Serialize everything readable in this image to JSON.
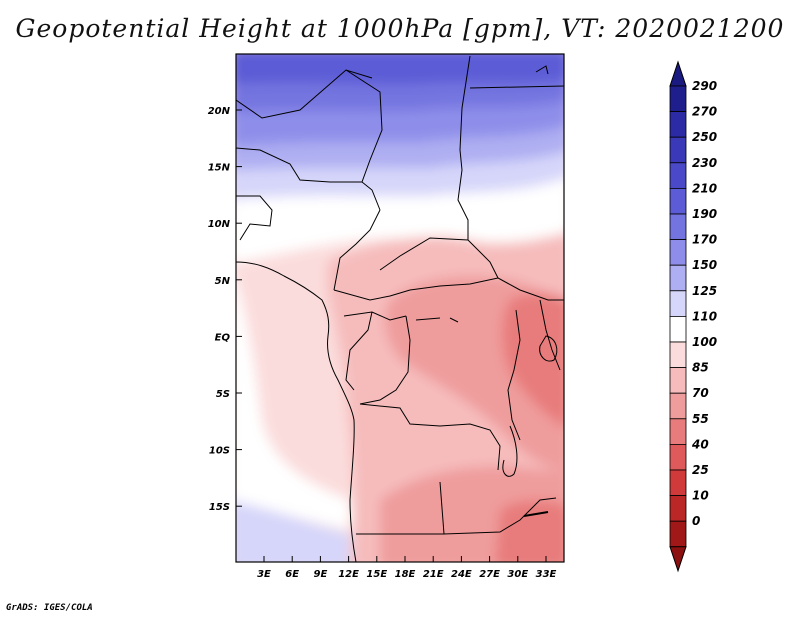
{
  "title": "Geopotential Height at 1000hPa [gpm], VT: 2020021200",
  "credit": "GrADS: IGES/COLA",
  "map": {
    "lat_ticks": [
      "20N",
      "15N",
      "10N",
      "5N",
      "EQ",
      "5S",
      "10S",
      "15S"
    ],
    "lon_ticks": [
      "3E",
      "6E",
      "9E",
      "12E",
      "15E",
      "18E",
      "21E",
      "24E",
      "27E",
      "30E",
      "33E"
    ]
  },
  "colorbar": {
    "levels": [
      {
        "label": "290",
        "color": "#1e1e8c"
      },
      {
        "label": "270",
        "color": "#2b2ba6"
      },
      {
        "label": "250",
        "color": "#3a3ab8"
      },
      {
        "label": "230",
        "color": "#4a4ac8"
      },
      {
        "label": "210",
        "color": "#5c5cd6"
      },
      {
        "label": "190",
        "color": "#7474e0"
      },
      {
        "label": "170",
        "color": "#8e8eea"
      },
      {
        "label": "150",
        "color": "#aeaef2"
      },
      {
        "label": "125",
        "color": "#d6d6fa"
      },
      {
        "label": "110",
        "color": "#ffffff"
      },
      {
        "label": "100",
        "color": "#fbdcdc"
      },
      {
        "label": "85",
        "color": "#f6bcbc"
      },
      {
        "label": "70",
        "color": "#ef9c9c"
      },
      {
        "label": "55",
        "color": "#e87c7c"
      },
      {
        "label": "40",
        "color": "#df5a5a"
      },
      {
        "label": "25",
        "color": "#d03a3a"
      },
      {
        "label": "10",
        "color": "#bb2626"
      },
      {
        "label": "0",
        "color": "#a01818"
      }
    ],
    "top_color": "#1a1a80",
    "bottom_color": "#8c1010"
  }
}
